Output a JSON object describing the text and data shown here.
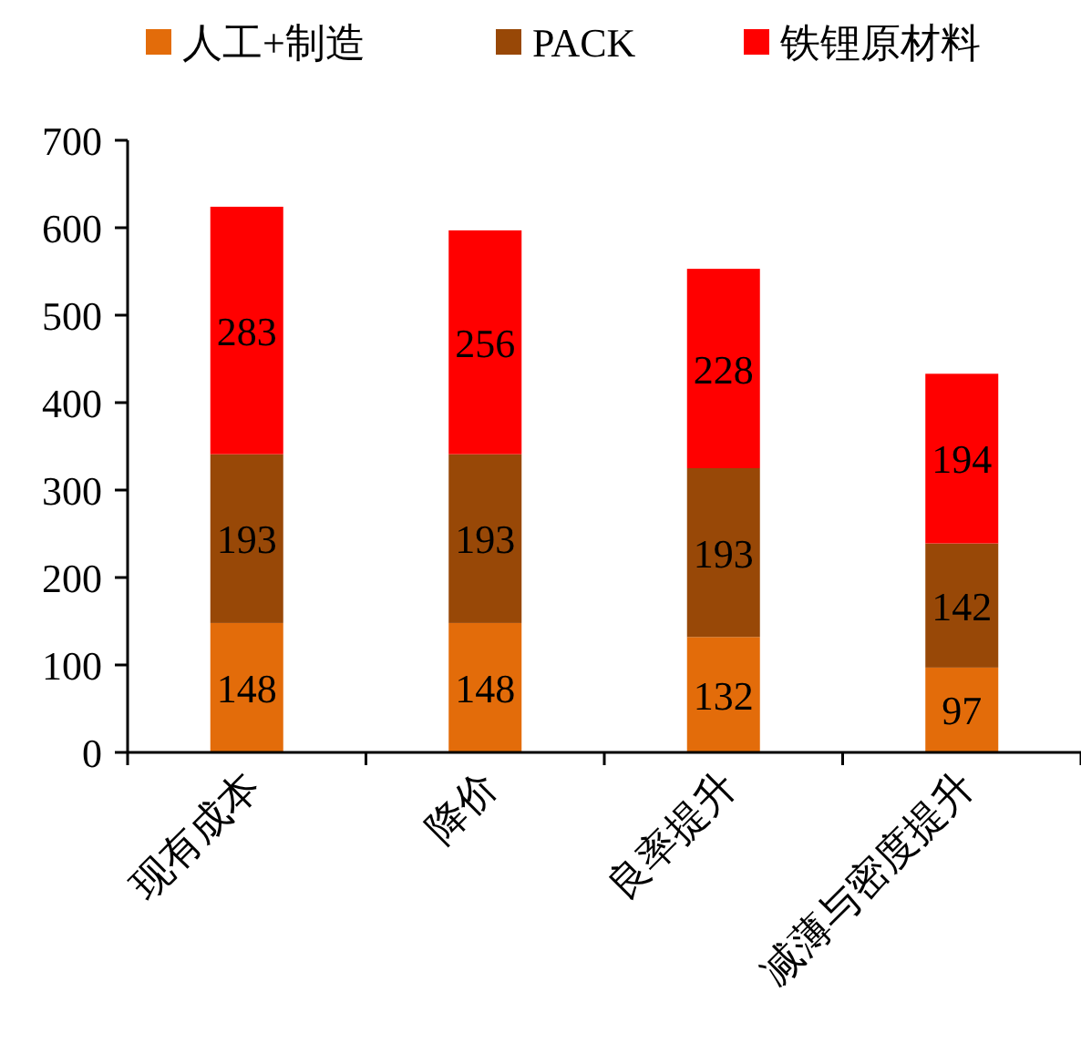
{
  "chart_data": {
    "type": "bar",
    "stacked": true,
    "data_labels": true,
    "legend": "top",
    "grid": false,
    "categories": [
      "现有成本",
      "降价",
      "良率提升",
      "减薄与密度提升"
    ],
    "series": [
      {
        "name": "人工+制造",
        "color": "#e36c0a",
        "values": [
          148,
          148,
          132,
          97
        ]
      },
      {
        "name": "PACK",
        "color": "#984807",
        "values": [
          193,
          193,
          193,
          142
        ]
      },
      {
        "name": "铁锂原材料",
        "color": "#ff0000",
        "values": [
          283,
          256,
          228,
          194
        ]
      }
    ],
    "ylim": [
      0,
      700
    ],
    "yticks": [
      0,
      100,
      200,
      300,
      400,
      500,
      600,
      700
    ]
  }
}
